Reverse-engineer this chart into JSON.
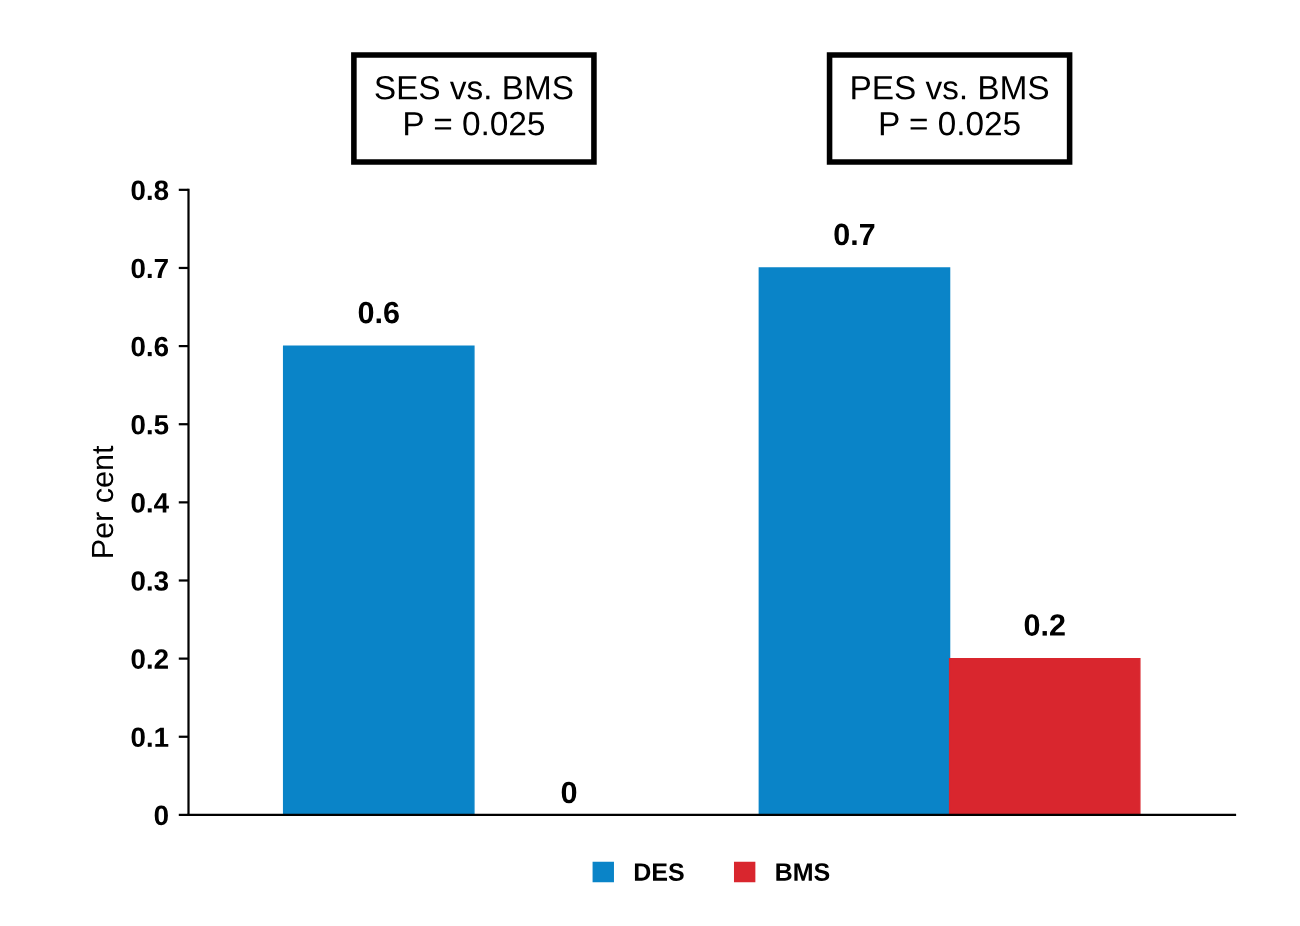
{
  "chart_data": {
    "type": "bar",
    "ylabel": "Per cent",
    "categories": [
      null,
      null
    ],
    "series": [
      {
        "name": "DES",
        "color": "#0a84c8",
        "values": [
          0.6,
          0.7
        ]
      },
      {
        "name": "BMS",
        "color": "#d9262e",
        "values": [
          0,
          0.2
        ]
      }
    ],
    "ylim": [
      0,
      0.8
    ],
    "yticks": [
      0,
      0.1,
      0.2,
      0.3,
      0.4,
      0.5,
      0.6,
      0.7,
      0.8
    ],
    "data_labels": true,
    "legend": "bottom",
    "grid": false,
    "annotations": [
      "SES vs. BMS\nP = 0.025",
      "PES vs. BMS\nP = 0.025"
    ]
  }
}
